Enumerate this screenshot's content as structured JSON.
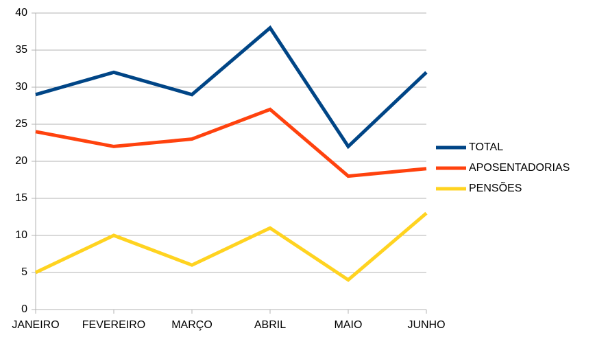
{
  "chart_data": {
    "type": "line",
    "categories": [
      "JANEIRO",
      "FEVEREIRO",
      "MARÇO",
      "ABRIL",
      "MAIO",
      "JUNHO"
    ],
    "series": [
      {
        "name": "TOTAL",
        "color": "#004586",
        "values": [
          29,
          32,
          29,
          38,
          22,
          32
        ]
      },
      {
        "name": "APOSENTADORIAS",
        "color": "#ff420e",
        "values": [
          24,
          22,
          23,
          27,
          18,
          19
        ]
      },
      {
        "name": "PENSÕES",
        "color": "#ffd320",
        "values": [
          5,
          10,
          6,
          11,
          4,
          13
        ]
      }
    ],
    "ylim": [
      0,
      40
    ],
    "yticks": [
      0,
      5,
      10,
      15,
      20,
      25,
      30,
      35,
      40
    ],
    "grid": true,
    "legend": "right"
  }
}
